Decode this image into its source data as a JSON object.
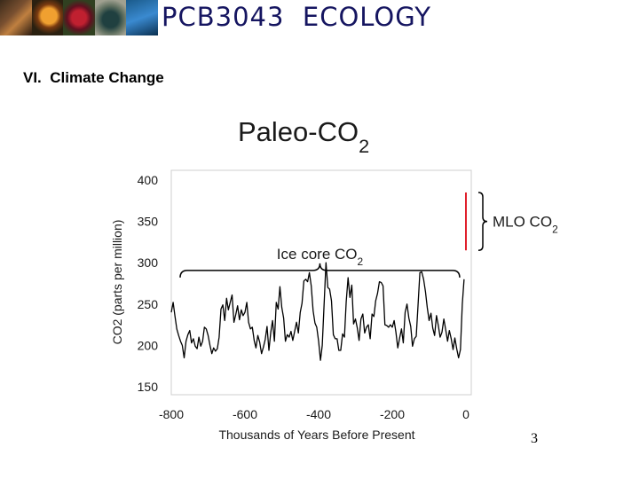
{
  "header": {
    "course_title": "PCB3043  ECOLOGY",
    "photos": [
      "leaf-photo",
      "mushroom-photo",
      "red-fungus-photo",
      "beetle-photo",
      "frog-photo"
    ]
  },
  "slide": {
    "section_title": "VI.  Climate Change",
    "page_number": "3"
  },
  "colors": {
    "title_text": "#151560",
    "series_line": "#000000",
    "mlo_line": "#e0202c"
  },
  "chart_data": {
    "type": "line",
    "title": "Paleo-CO2",
    "xlabel": "Thousands of Years Before Present",
    "ylabel": "CO2 (parts per million)",
    "xlim": [
      -800,
      0
    ],
    "ylim": [
      150,
      400
    ],
    "x_ticks": [
      -800,
      -600,
      -400,
      -200,
      0
    ],
    "y_ticks": [
      150,
      200,
      250,
      300,
      350,
      400
    ],
    "grid": false,
    "annotations": [
      {
        "id": "ice",
        "label": "Ice core CO2",
        "x_range": [
          -800,
          -5
        ],
        "y": 295
      },
      {
        "id": "mlo",
        "label": "MLO CO2",
        "x": 0,
        "y_range": [
          315,
          385
        ]
      }
    ],
    "series": [
      {
        "name": "Ice core CO2",
        "x": [
          -800,
          -795,
          -790,
          -785,
          -780,
          -775,
          -770,
          -765,
          -760,
          -755,
          -750,
          -745,
          -740,
          -735,
          -730,
          -725,
          -720,
          -715,
          -710,
          -705,
          -700,
          -695,
          -690,
          -685,
          -680,
          -675,
          -670,
          -665,
          -660,
          -655,
          -650,
          -645,
          -640,
          -635,
          -630,
          -625,
          -620,
          -615,
          -610,
          -605,
          -600,
          -595,
          -590,
          -585,
          -580,
          -575,
          -570,
          -565,
          -560,
          -555,
          -550,
          -545,
          -540,
          -535,
          -530,
          -525,
          -520,
          -515,
          -510,
          -505,
          -500,
          -495,
          -490,
          -485,
          -480,
          -475,
          -470,
          -465,
          -460,
          -455,
          -450,
          -445,
          -440,
          -435,
          -430,
          -425,
          -420,
          -415,
          -410,
          -405,
          -400,
          -395,
          -390,
          -385,
          -380,
          -375,
          -370,
          -365,
          -360,
          -355,
          -350,
          -345,
          -340,
          -335,
          -330,
          -325,
          -320,
          -315,
          -310,
          -305,
          -300,
          -295,
          -290,
          -285,
          -280,
          -275,
          -270,
          -265,
          -260,
          -255,
          -250,
          -245,
          -240,
          -235,
          -230,
          -225,
          -220,
          -215,
          -210,
          -205,
          -200,
          -195,
          -190,
          -185,
          -180,
          -175,
          -170,
          -165,
          -160,
          -155,
          -150,
          -145,
          -140,
          -135,
          -130,
          -125,
          -120,
          -115,
          -110,
          -105,
          -100,
          -95,
          -90,
          -85,
          -80,
          -75,
          -70,
          -65,
          -60,
          -55,
          -50,
          -45,
          -40,
          -35,
          -30,
          -25,
          -20,
          -15,
          -10,
          -5
        ],
        "values": [
          240,
          252,
          235,
          220,
          212,
          205,
          200,
          185,
          205,
          213,
          218,
          203,
          208,
          199,
          196,
          210,
          199,
          205,
          222,
          220,
          212,
          200,
          190,
          197,
          193,
          196,
          210,
          244,
          249,
          230,
          257,
          243,
          252,
          261,
          228,
          237,
          248,
          231,
          243,
          236,
          240,
          252,
          228,
          220,
          222,
          206,
          197,
          212,
          204,
          190,
          198,
          207,
          223,
          194,
          216,
          230,
          205,
          252,
          244,
          271,
          246,
          233,
          205,
          213,
          210,
          217,
          206,
          217,
          228,
          215,
          240,
          251,
          278,
          280,
          277,
          288,
          272,
          242,
          227,
          222,
          205,
          182,
          200,
          250,
          300,
          270,
          268,
          254,
          213,
          208,
          208,
          194,
          194,
          214,
          210,
          253,
          282,
          258,
          273,
          226,
          232,
          221,
          206,
          232,
          238,
          215,
          222,
          225,
          208,
          238,
          235,
          254,
          263,
          277,
          276,
          272,
          225,
          224,
          222,
          225,
          222,
          230,
          216,
          197,
          209,
          220,
          203,
          240,
          250,
          233,
          223,
          199,
          208,
          211,
          250,
          288,
          289,
          280,
          265,
          246,
          230,
          239,
          221,
          212,
          236,
          224,
          210,
          216,
          232,
          219,
          205,
          218,
          208,
          195,
          209,
          196,
          185,
          195,
          250,
          280
        ]
      },
      {
        "name": "MLO CO2",
        "x": [
          0,
          0
        ],
        "values": [
          315,
          385
        ]
      }
    ]
  }
}
